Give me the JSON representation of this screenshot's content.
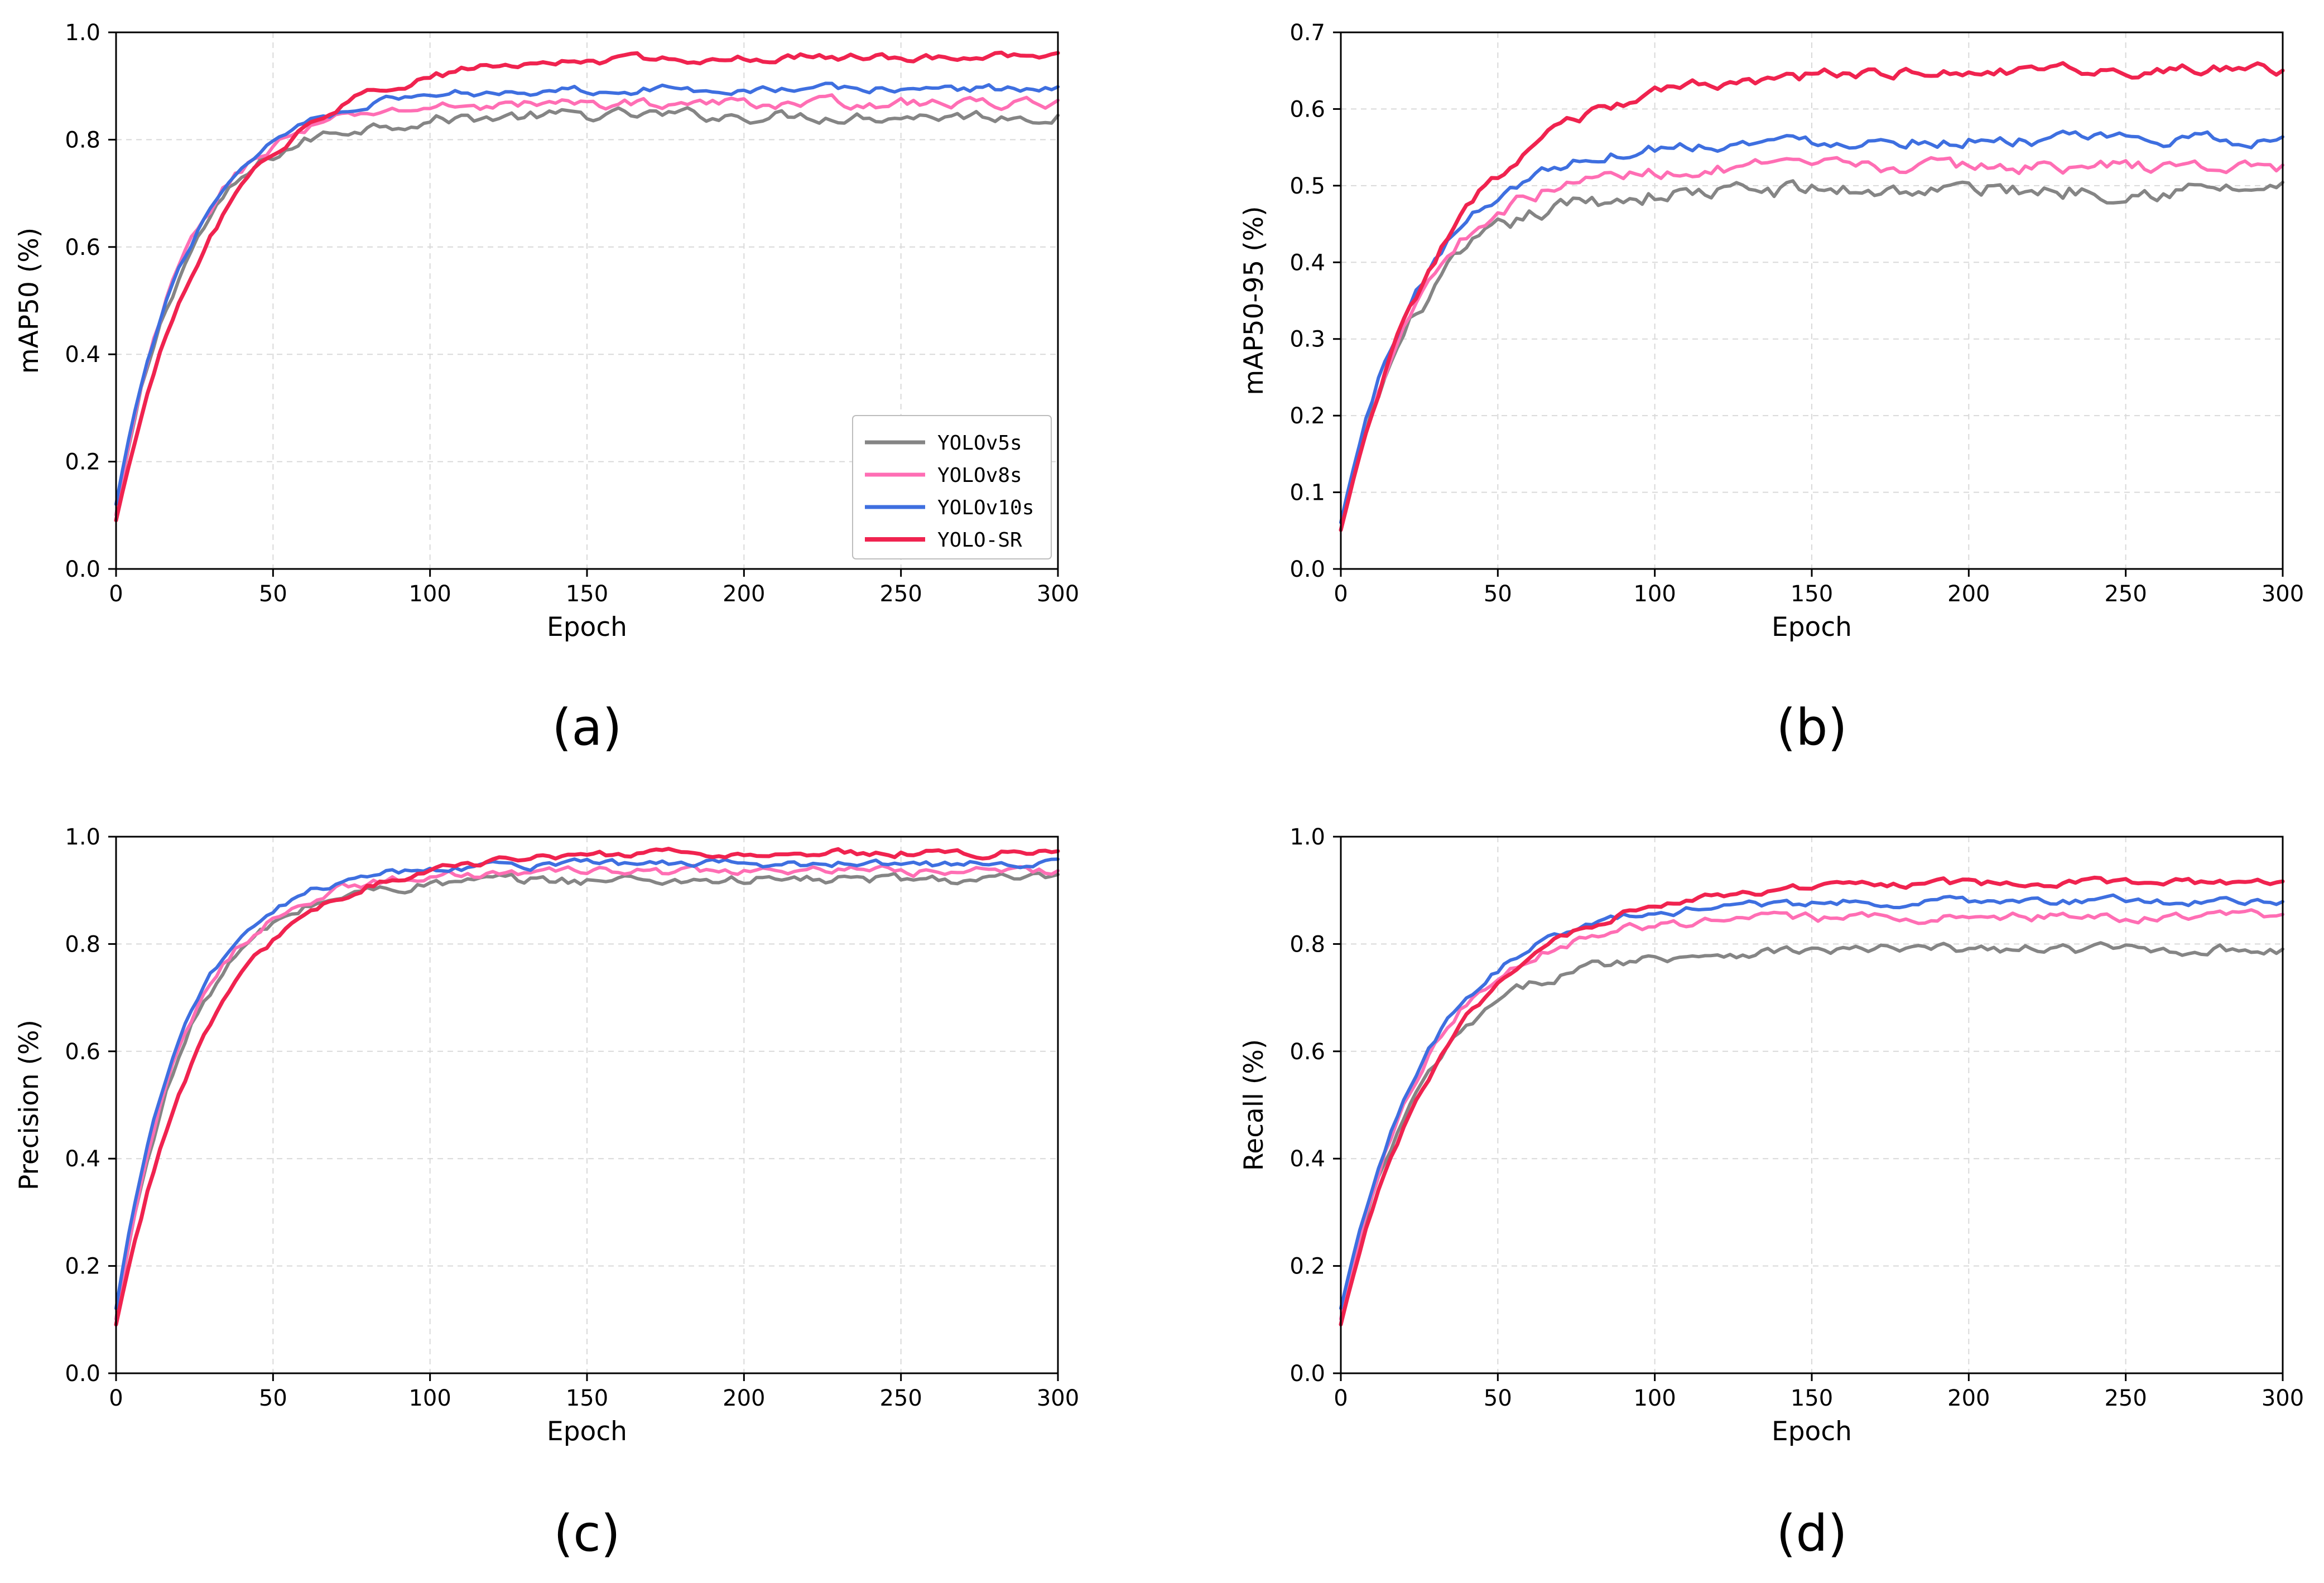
{
  "colors": {
    "YOLOv5s": "#858585",
    "YOLOv8s": "#ff6eb4",
    "YOLOv10s": "#3e6fe0",
    "YOLO-SR": "#f0234f"
  },
  "legend": [
    "YOLOv5s",
    "YOLOv8s",
    "YOLOv10s",
    "YOLO-SR"
  ],
  "chart_data": [
    {
      "type": "line",
      "caption": "(a)",
      "xlabel": "Epoch",
      "ylabel": "mAP50 (%)",
      "xlim": [
        0,
        300
      ],
      "ylim": [
        0,
        1.0
      ],
      "xticks": [
        "0",
        "50",
        "100",
        "150",
        "200",
        "250",
        "300"
      ],
      "yticks": [
        "0.0",
        "0.2",
        "0.4",
        "0.6",
        "0.8",
        "1.0"
      ],
      "grid": true,
      "legend_position": "lower-right",
      "series": [
        {
          "name": "YOLOv5s",
          "start": 0.1,
          "final": 0.845,
          "tau": 22,
          "noise": 0.012
        },
        {
          "name": "YOLOv8s",
          "start": 0.1,
          "final": 0.868,
          "tau": 22,
          "noise": 0.01
        },
        {
          "name": "YOLOv10s",
          "start": 0.12,
          "final": 0.895,
          "tau": 24,
          "noise": 0.008
        },
        {
          "name": "YOLO-SR",
          "start": 0.09,
          "final": 0.955,
          "tau": 32,
          "noise": 0.008
        }
      ]
    },
    {
      "type": "line",
      "caption": "(b)",
      "xlabel": "Epoch",
      "ylabel": "mAP50-95 (%)",
      "xlim": [
        0,
        300
      ],
      "ylim": [
        0,
        0.7
      ],
      "xticks": [
        "0",
        "50",
        "100",
        "150",
        "200",
        "250",
        "300"
      ],
      "yticks": [
        "0.0",
        "0.1",
        "0.2",
        "0.3",
        "0.4",
        "0.5",
        "0.6",
        "0.7"
      ],
      "grid": true,
      "series": [
        {
          "name": "YOLOv5s",
          "start": 0.05,
          "final": 0.495,
          "tau": 24,
          "noise": 0.012
        },
        {
          "name": "YOLOv8s",
          "start": 0.05,
          "final": 0.525,
          "tau": 24,
          "noise": 0.009
        },
        {
          "name": "YOLOv10s",
          "start": 0.06,
          "final": 0.56,
          "tau": 26,
          "noise": 0.008
        },
        {
          "name": "YOLO-SR",
          "start": 0.05,
          "final": 0.65,
          "tau": 34,
          "noise": 0.008
        }
      ]
    },
    {
      "type": "line",
      "caption": "(c)",
      "xlabel": "Epoch",
      "ylabel": "Precision (%)",
      "xlim": [
        0,
        300
      ],
      "ylim": [
        0,
        1.0
      ],
      "xticks": [
        "0",
        "50",
        "100",
        "150",
        "200",
        "250",
        "300"
      ],
      "yticks": [
        "0.0",
        "0.2",
        "0.4",
        "0.6",
        "0.8",
        "1.0"
      ],
      "grid": true,
      "series": [
        {
          "name": "YOLOv5s",
          "start": 0.1,
          "final": 0.92,
          "tau": 22,
          "noise": 0.01
        },
        {
          "name": "YOLOv8s",
          "start": 0.1,
          "final": 0.935,
          "tau": 22,
          "noise": 0.009
        },
        {
          "name": "YOLOv10s",
          "start": 0.12,
          "final": 0.95,
          "tau": 22,
          "noise": 0.008
        },
        {
          "name": "YOLO-SR",
          "start": 0.09,
          "final": 0.97,
          "tau": 30,
          "noise": 0.007
        }
      ]
    },
    {
      "type": "line",
      "caption": "(d)",
      "xlabel": "Epoch",
      "ylabel": "Recall (%)",
      "xlim": [
        0,
        300
      ],
      "ylim": [
        0,
        1.0
      ],
      "xticks": [
        "0",
        "50",
        "100",
        "150",
        "200",
        "250",
        "300"
      ],
      "yticks": [
        "0.0",
        "0.2",
        "0.4",
        "0.6",
        "0.8",
        "1.0"
      ],
      "grid": true,
      "series": [
        {
          "name": "YOLOv5s",
          "start": 0.1,
          "final": 0.79,
          "tau": 26,
          "noise": 0.01
        },
        {
          "name": "YOLOv8s",
          "start": 0.1,
          "final": 0.85,
          "tau": 26,
          "noise": 0.009
        },
        {
          "name": "YOLOv10s",
          "start": 0.12,
          "final": 0.88,
          "tau": 28,
          "noise": 0.008
        },
        {
          "name": "YOLO-SR",
          "start": 0.09,
          "final": 0.915,
          "tau": 34,
          "noise": 0.007
        }
      ]
    }
  ]
}
